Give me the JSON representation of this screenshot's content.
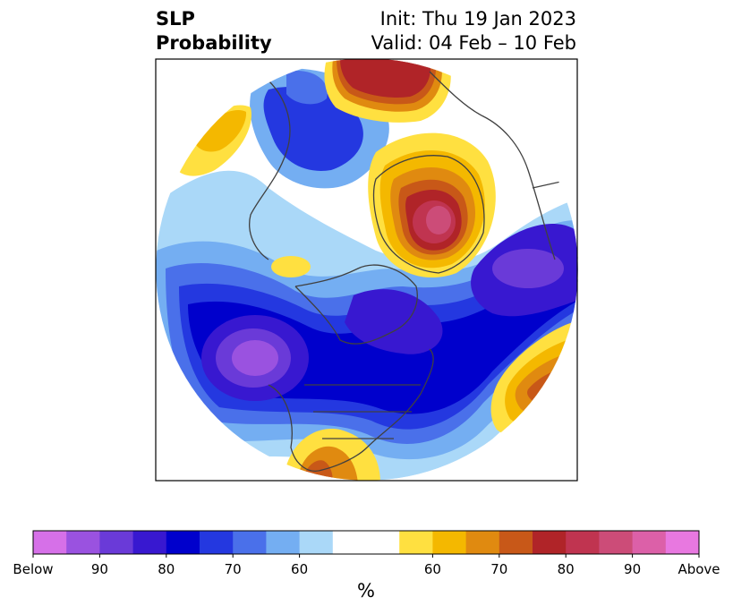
{
  "title": {
    "line1_left": "SLP",
    "line2_left": "Probability",
    "line1_right": "Init: Thu 19 Jan 2023",
    "line2_right": "Valid: 04 Feb – 10 Feb"
  },
  "colorbar": {
    "colors": [
      "#d670e8",
      "#9a52e0",
      "#6a3ad8",
      "#3818d0",
      "#0000cc",
      "#2438e0",
      "#4a70ea",
      "#74aef2",
      "#aad8f8",
      "#ffffff",
      "#ffffff",
      "#ffe040",
      "#f4b800",
      "#e08a10",
      "#c85818",
      "#b02428",
      "#c03450",
      "#cc4c78",
      "#dc60a8",
      "#e878e0"
    ],
    "labels": [
      "Below",
      "90",
      "80",
      "70",
      "60",
      "60",
      "70",
      "80",
      "90",
      "Above"
    ],
    "units": "%"
  },
  "map_colors": {
    "land_lines": "#404040",
    "frame": "#000000"
  }
}
